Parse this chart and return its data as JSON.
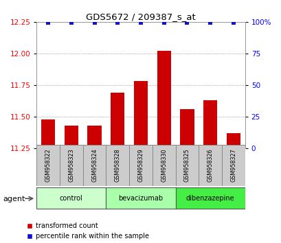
{
  "title": "GDS5672 / 209387_s_at",
  "samples": [
    "GSM958322",
    "GSM958323",
    "GSM958324",
    "GSM958328",
    "GSM958329",
    "GSM958330",
    "GSM958325",
    "GSM958326",
    "GSM958327"
  ],
  "bar_values": [
    11.48,
    11.43,
    11.43,
    11.69,
    11.78,
    12.02,
    11.56,
    11.63,
    11.37
  ],
  "percentile_values": [
    99.5,
    99.5,
    99.5,
    99.5,
    99.5,
    99.5,
    99.5,
    99.5,
    99.5
  ],
  "ylim_left": [
    11.25,
    12.25
  ],
  "ylim_right": [
    0,
    100
  ],
  "yticks_left": [
    11.25,
    11.5,
    11.75,
    12.0,
    12.25
  ],
  "yticks_right": [
    0,
    25,
    50,
    75,
    100
  ],
  "ytick_labels_right": [
    "0",
    "25",
    "50",
    "75",
    "100%"
  ],
  "bar_color": "#cc0000",
  "dot_color": "#1111cc",
  "bar_bottom": 11.25,
  "groups": [
    {
      "label": "control",
      "indices": [
        0,
        1,
        2
      ],
      "color": "#ccffcc"
    },
    {
      "label": "bevacizumab",
      "indices": [
        3,
        4,
        5
      ],
      "color": "#aaffaa"
    },
    {
      "label": "dibenzazepine",
      "indices": [
        6,
        7,
        8
      ],
      "color": "#44ee44"
    }
  ],
  "agent_label": "agent",
  "legend_red_label": "transformed count",
  "legend_blue_label": "percentile rank within the sample",
  "background_color": "#ffffff",
  "grid_color": "#888888",
  "sample_box_color": "#cccccc",
  "sample_box_edge": "#888888"
}
